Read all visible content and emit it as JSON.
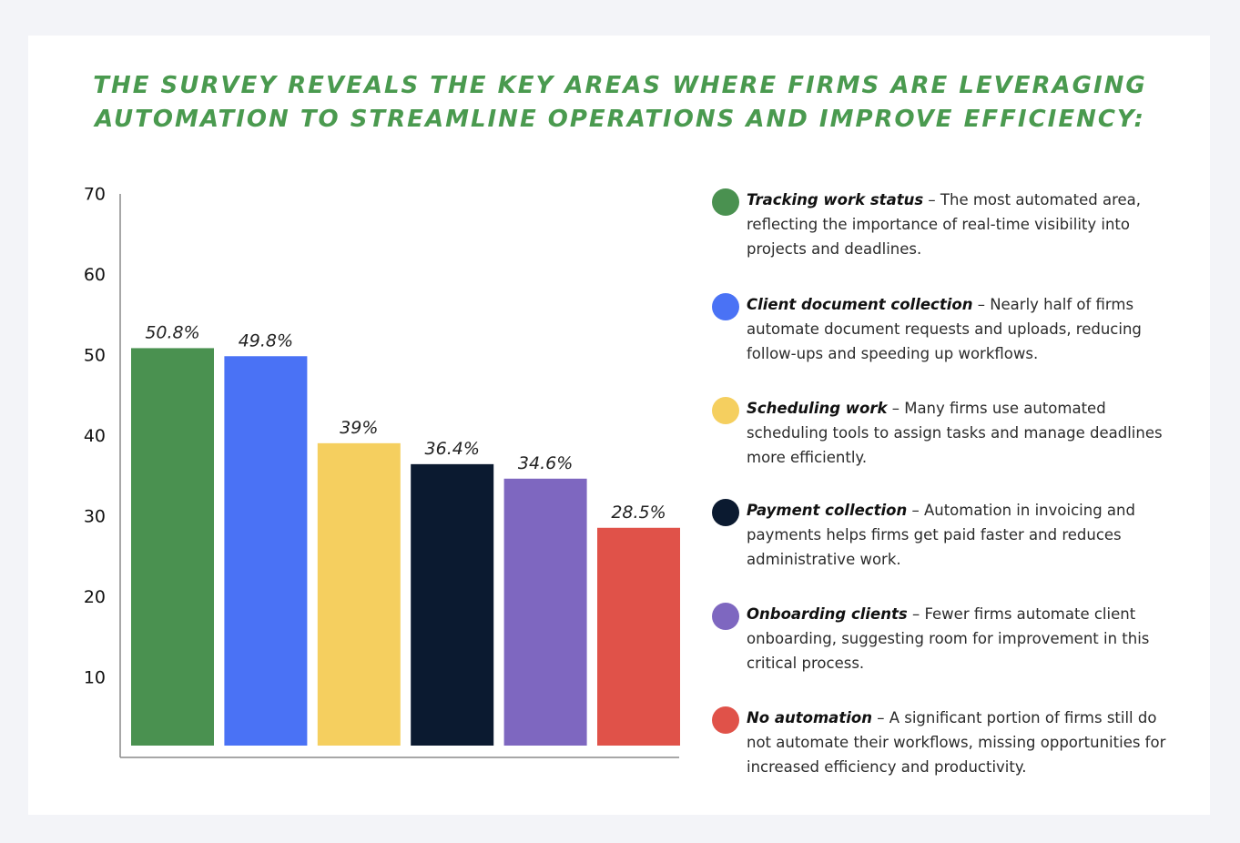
{
  "title": {
    "line1": "THE SURVEY REVEALS THE KEY AREAS WHERE FIRMS ARE LEVERAGING",
    "line2": "AUTOMATION TO STREAMLINE OPERATIONS AND IMPROVE EFFICIENCY:"
  },
  "chart_data": {
    "type": "bar",
    "categories": [
      "Tracking work status",
      "Client document collection",
      "Scheduling work",
      "Payment collection",
      "Onboarding clients",
      "No automation"
    ],
    "values": [
      50.8,
      49.8,
      39,
      36.4,
      34.6,
      28.5
    ],
    "value_labels": [
      "50.8%",
      "49.8%",
      "39%",
      "36.4%",
      "34.6%",
      "28.5%"
    ],
    "colors": [
      "#4a9150",
      "#4a72f5",
      "#f5cf5f",
      "#0b1a30",
      "#7e67c0",
      "#e05249"
    ],
    "yticks": [
      10,
      20,
      30,
      40,
      50,
      60,
      70
    ],
    "ylim": [
      0,
      70
    ],
    "grid": false,
    "legend_position": "right"
  },
  "legend": [
    {
      "name": "Tracking work status",
      "desc": " – The most automated area, reflecting the importance of real-time visibility into projects and deadlines.",
      "color": "#4a9150"
    },
    {
      "name": "Client document collection",
      "desc": " – Nearly half of firms automate document requests and uploads, reducing follow-ups and speeding up workflows.",
      "color": "#4a72f5"
    },
    {
      "name": "Scheduling work",
      "desc": " – Many firms use automated scheduling tools to assign tasks and manage deadlines more efficiently.",
      "color": "#f5cf5f"
    },
    {
      "name": "Payment collection",
      "desc": " – Automation in invoicing and payments helps firms get paid faster and reduces administrative work.",
      "color": "#0b1a30"
    },
    {
      "name": "Onboarding clients",
      "desc": " – Fewer firms automate client onboarding, suggesting room for improvement in this critical process.",
      "color": "#7e67c0"
    },
    {
      "name": "No automation",
      "desc": "  – A significant portion of firms still do not automate their workflows, missing opportunities for increased efficiency and productivity.",
      "color": "#e05249"
    }
  ]
}
